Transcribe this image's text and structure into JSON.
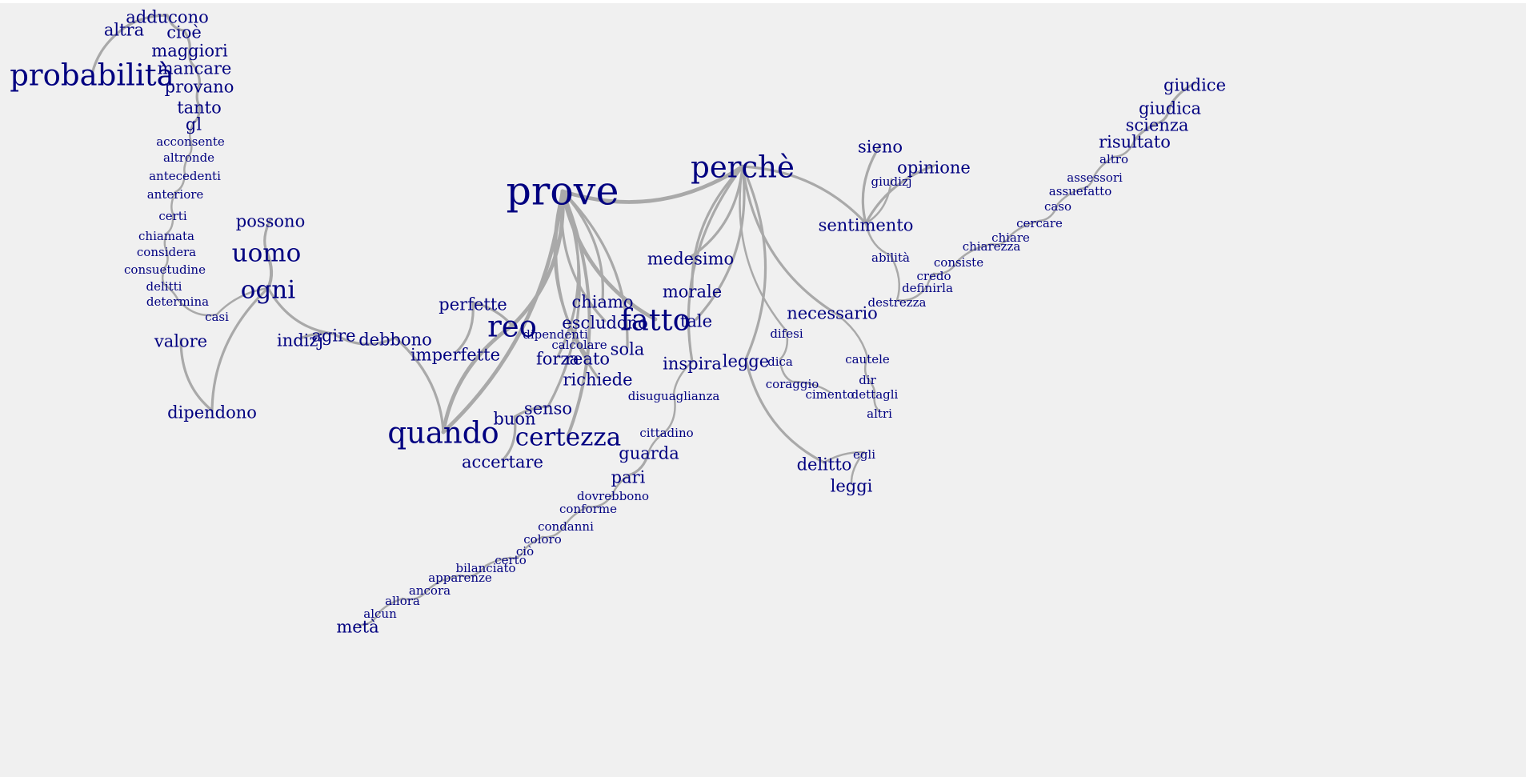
{
  "graph": {
    "colors": {
      "background": "#f0f0f0",
      "word": "#000080",
      "edge": "#a9a9a9"
    },
    "words": [
      {
        "id": "prove",
        "label": "prove",
        "w": 5
      },
      {
        "id": "perche",
        "label": "perchè",
        "w": 4
      },
      {
        "id": "probabilita",
        "label": "probabilità",
        "w": 4
      },
      {
        "id": "quando",
        "label": "quando",
        "w": 4
      },
      {
        "id": "reo",
        "label": "reo",
        "w": 4
      },
      {
        "id": "fatto",
        "label": "fatto",
        "w": 4
      },
      {
        "id": "certezza",
        "label": "certezza",
        "w": 3
      },
      {
        "id": "uomo",
        "label": "uomo",
        "w": 3
      },
      {
        "id": "ogni",
        "label": "ogni",
        "w": 3
      },
      {
        "id": "giudice",
        "label": "giudice",
        "w": 2
      },
      {
        "id": "leggi",
        "label": "leggi",
        "w": 2
      },
      {
        "id": "altra",
        "label": "altra",
        "w": 2
      },
      {
        "id": "adducono",
        "label": "adducono",
        "w": 2
      },
      {
        "id": "cioe",
        "label": "cioè",
        "w": 2
      },
      {
        "id": "maggiori",
        "label": "maggiori",
        "w": 2
      },
      {
        "id": "mancare",
        "label": "mancare",
        "w": 2
      },
      {
        "id": "provano",
        "label": "provano",
        "w": 2
      },
      {
        "id": "tanto",
        "label": "tanto",
        "w": 2
      },
      {
        "id": "gl",
        "label": "gl",
        "w": 2
      },
      {
        "id": "possono",
        "label": "possono",
        "w": 2
      },
      {
        "id": "valore",
        "label": "valore",
        "w": 2
      },
      {
        "id": "dipendono",
        "label": "dipendono",
        "w": 2
      },
      {
        "id": "indizj",
        "label": "indizj",
        "w": 2
      },
      {
        "id": "agire",
        "label": "agire",
        "w": 2
      },
      {
        "id": "debbono",
        "label": "debbono",
        "w": 2
      },
      {
        "id": "imperfette",
        "label": "imperfette",
        "w": 2
      },
      {
        "id": "perfette",
        "label": "perfette",
        "w": 2
      },
      {
        "id": "chiamo",
        "label": "chiamo",
        "w": 2
      },
      {
        "id": "escludono",
        "label": "escludono",
        "w": 2
      },
      {
        "id": "sola",
        "label": "sola",
        "w": 2
      },
      {
        "id": "forza",
        "label": "forza",
        "w": 2
      },
      {
        "id": "reato",
        "label": "reato",
        "w": 2
      },
      {
        "id": "richiede",
        "label": "richiede",
        "w": 2
      },
      {
        "id": "senso",
        "label": "senso",
        "w": 2
      },
      {
        "id": "buon",
        "label": "buon",
        "w": 2
      },
      {
        "id": "accertare",
        "label": "accertare",
        "w": 2
      },
      {
        "id": "medesimo",
        "label": "medesimo",
        "w": 2
      },
      {
        "id": "morale",
        "label": "morale",
        "w": 2
      },
      {
        "id": "tale",
        "label": "tale",
        "w": 2
      },
      {
        "id": "inspira",
        "label": "inspira",
        "w": 2
      },
      {
        "id": "legge",
        "label": "legge",
        "w": 2
      },
      {
        "id": "necessario",
        "label": "necessario",
        "w": 2
      },
      {
        "id": "sentimento",
        "label": "sentimento",
        "w": 2
      },
      {
        "id": "opinione",
        "label": "opinione",
        "w": 2
      },
      {
        "id": "sieno",
        "label": "sieno",
        "w": 2
      },
      {
        "id": "delitto",
        "label": "delitto",
        "w": 2
      },
      {
        "id": "guarda",
        "label": "guarda",
        "w": 2
      },
      {
        "id": "pari",
        "label": "pari",
        "w": 2
      },
      {
        "id": "meta",
        "label": "metà",
        "w": 2
      },
      {
        "id": "giudica",
        "label": "giudica",
        "w": 2
      },
      {
        "id": "scienza",
        "label": "scienza",
        "w": 2
      },
      {
        "id": "risultato",
        "label": "risultato",
        "w": 2
      },
      {
        "id": "acconsente",
        "label": "acconsente",
        "w": 1
      },
      {
        "id": "altronde",
        "label": "altronde",
        "w": 1
      },
      {
        "id": "antecedenti",
        "label": "antecedenti",
        "w": 1
      },
      {
        "id": "anteriore",
        "label": "anteriore",
        "w": 1
      },
      {
        "id": "certi",
        "label": "certi",
        "w": 1
      },
      {
        "id": "chiamata",
        "label": "chiamata",
        "w": 1
      },
      {
        "id": "considera",
        "label": "considera",
        "w": 1
      },
      {
        "id": "consuetudine",
        "label": "consuetudine",
        "w": 1
      },
      {
        "id": "delitti",
        "label": "delitti",
        "w": 1
      },
      {
        "id": "determina",
        "label": "determina",
        "w": 1
      },
      {
        "id": "casi",
        "label": "casi",
        "w": 1
      },
      {
        "id": "dipendenti",
        "label": "dipendenti",
        "w": 1
      },
      {
        "id": "calcolare",
        "label": "calcolare",
        "w": 1
      },
      {
        "id": "disuguaglianza",
        "label": "disuguaglianza",
        "w": 1
      },
      {
        "id": "cittadino",
        "label": "cittadino",
        "w": 1
      },
      {
        "id": "dovrebbono",
        "label": "dovrebbono",
        "w": 1
      },
      {
        "id": "conforme",
        "label": "conforme",
        "w": 1
      },
      {
        "id": "condanni",
        "label": "condanni",
        "w": 1
      },
      {
        "id": "coloro",
        "label": "coloro",
        "w": 1
      },
      {
        "id": "cio",
        "label": "ciò",
        "w": 1
      },
      {
        "id": "certo",
        "label": "certo",
        "w": 1
      },
      {
        "id": "bilanciato",
        "label": "bilanciato",
        "w": 1
      },
      {
        "id": "apparenze",
        "label": "apparenze",
        "w": 1
      },
      {
        "id": "ancora",
        "label": "ancora",
        "w": 1
      },
      {
        "id": "allora",
        "label": "allora",
        "w": 1
      },
      {
        "id": "alcun",
        "label": "alcun",
        "w": 1
      },
      {
        "id": "difesi",
        "label": "difesi",
        "w": 1
      },
      {
        "id": "dica",
        "label": "dica",
        "w": 1
      },
      {
        "id": "coraggio",
        "label": "coraggio",
        "w": 1
      },
      {
        "id": "cimento",
        "label": "cimento",
        "w": 1
      },
      {
        "id": "cautele",
        "label": "cautele",
        "w": 1
      },
      {
        "id": "dir",
        "label": "dir",
        "w": 1
      },
      {
        "id": "dettagli",
        "label": "dettagli",
        "w": 1
      },
      {
        "id": "altri",
        "label": "altri",
        "w": 1
      },
      {
        "id": "egli",
        "label": "egli",
        "w": 1
      },
      {
        "id": "giudizj",
        "label": "giudizj",
        "w": 1
      },
      {
        "id": "abilita",
        "label": "abilità",
        "w": 1
      },
      {
        "id": "credo",
        "label": "credo",
        "w": 1
      },
      {
        "id": "definirla",
        "label": "definirla",
        "w": 1
      },
      {
        "id": "destrezza",
        "label": "destrezza",
        "w": 1
      },
      {
        "id": "consiste",
        "label": "consiste",
        "w": 1
      },
      {
        "id": "chiarezza",
        "label": "chiarezza",
        "w": 1
      },
      {
        "id": "chiare",
        "label": "chiare",
        "w": 1
      },
      {
        "id": "cercare",
        "label": "cercare",
        "w": 1
      },
      {
        "id": "caso",
        "label": "caso",
        "w": 1
      },
      {
        "id": "assuefatto",
        "label": "assuefatto",
        "w": 1
      },
      {
        "id": "assessori",
        "label": "assessori",
        "w": 1
      },
      {
        "id": "altro",
        "label": "altro",
        "w": 1
      }
    ],
    "edges": [
      [
        "altra",
        "probabilita"
      ],
      [
        "altra",
        "adducono"
      ],
      [
        "adducono",
        "cioe"
      ],
      [
        "cioe",
        "maggiori"
      ],
      [
        "maggiori",
        "mancare"
      ],
      [
        "mancare",
        "provano"
      ],
      [
        "provano",
        "tanto"
      ],
      [
        "tanto",
        "gl"
      ],
      [
        "gl",
        "acconsente"
      ],
      [
        "acconsente",
        "altronde"
      ],
      [
        "altronde",
        "antecedenti"
      ],
      [
        "antecedenti",
        "anteriore"
      ],
      [
        "anteriore",
        "certi"
      ],
      [
        "certi",
        "chiamata"
      ],
      [
        "chiamata",
        "considera"
      ],
      [
        "considera",
        "consuetudine"
      ],
      [
        "consuetudine",
        "delitti"
      ],
      [
        "delitti",
        "determina"
      ],
      [
        "determina",
        "casi"
      ],
      [
        "casi",
        "ogni"
      ],
      [
        "possono",
        "uomo"
      ],
      [
        "uomo",
        "ogni"
      ],
      [
        "ogni",
        "dipendono"
      ],
      [
        "dipendono",
        "valore"
      ],
      [
        "ogni",
        "agire"
      ],
      [
        "indizj",
        "agire"
      ],
      [
        "agire",
        "debbono"
      ],
      [
        "debbono",
        "quando"
      ],
      [
        "quando",
        "prove"
      ],
      [
        "quando",
        "reo"
      ],
      [
        "reo",
        "perfette"
      ],
      [
        "perfette",
        "imperfette"
      ],
      [
        "reo",
        "prove"
      ],
      [
        "prove",
        "chiamo"
      ],
      [
        "prove",
        "escludono"
      ],
      [
        "prove",
        "forza"
      ],
      [
        "prove",
        "reato"
      ],
      [
        "prove",
        "sola"
      ],
      [
        "prove",
        "richiede"
      ],
      [
        "prove",
        "certezza"
      ],
      [
        "prove",
        "fatto"
      ],
      [
        "prove",
        "senso"
      ],
      [
        "senso",
        "buon"
      ],
      [
        "buon",
        "accertare"
      ],
      [
        "prove",
        "perche"
      ],
      [
        "perche",
        "medesimo"
      ],
      [
        "perche",
        "morale"
      ],
      [
        "perche",
        "tale"
      ],
      [
        "perche",
        "inspira"
      ],
      [
        "perche",
        "legge"
      ],
      [
        "perche",
        "necessario"
      ],
      [
        "perche",
        "sentimento"
      ],
      [
        "perche",
        "difesi"
      ],
      [
        "difesi",
        "dica"
      ],
      [
        "dica",
        "coraggio"
      ],
      [
        "coraggio",
        "cimento"
      ],
      [
        "legge",
        "delitto"
      ],
      [
        "delitto",
        "egli"
      ],
      [
        "egli",
        "leggi"
      ],
      [
        "necessario",
        "cautele"
      ],
      [
        "cautele",
        "dir"
      ],
      [
        "dir",
        "dettagli"
      ],
      [
        "dettagli",
        "altri"
      ],
      [
        "sentimento",
        "sieno"
      ],
      [
        "sentimento",
        "giudizj"
      ],
      [
        "sentimento",
        "opinione"
      ],
      [
        "sentimento",
        "abilita"
      ],
      [
        "abilita",
        "destrezza"
      ],
      [
        "destrezza",
        "definirla"
      ],
      [
        "definirla",
        "credo"
      ],
      [
        "credo",
        "consiste"
      ],
      [
        "consiste",
        "chiarezza"
      ],
      [
        "chiarezza",
        "chiare"
      ],
      [
        "chiare",
        "cercare"
      ],
      [
        "cercare",
        "caso"
      ],
      [
        "caso",
        "assuefatto"
      ],
      [
        "assuefatto",
        "assessori"
      ],
      [
        "assessori",
        "altro"
      ],
      [
        "altro",
        "risultato"
      ],
      [
        "risultato",
        "scienza"
      ],
      [
        "scienza",
        "giudica"
      ],
      [
        "giudica",
        "giudice"
      ],
      [
        "inspira",
        "disuguaglianza"
      ],
      [
        "disuguaglianza",
        "cittadino"
      ],
      [
        "cittadino",
        "guarda"
      ],
      [
        "guarda",
        "pari"
      ],
      [
        "pari",
        "dovrebbono"
      ],
      [
        "dovrebbono",
        "conforme"
      ],
      [
        "conforme",
        "condanni"
      ],
      [
        "condanni",
        "coloro"
      ],
      [
        "coloro",
        "cio"
      ],
      [
        "cio",
        "certo"
      ],
      [
        "certo",
        "bilanciato"
      ],
      [
        "bilanciato",
        "apparenze"
      ],
      [
        "apparenze",
        "ancora"
      ],
      [
        "ancora",
        "allora"
      ],
      [
        "allora",
        "alcun"
      ],
      [
        "alcun",
        "meta"
      ]
    ]
  }
}
